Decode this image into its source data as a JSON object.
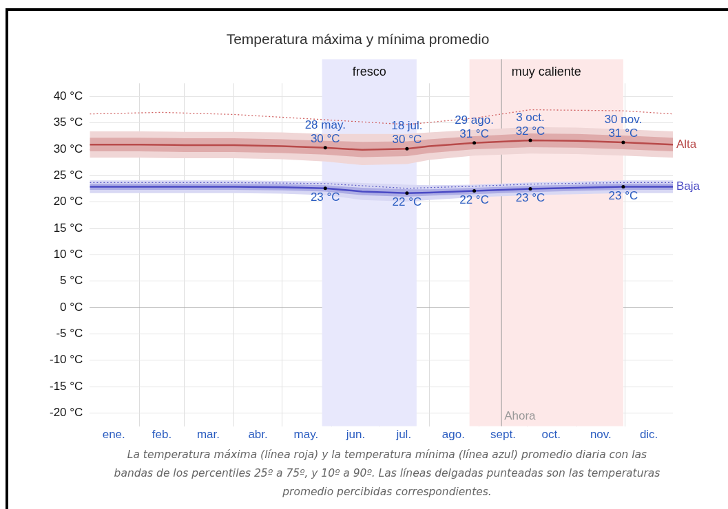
{
  "chart_data": {
    "type": "line",
    "title": "Temperatura máxima y mínima promedio",
    "xlim": [
      "--01-01",
      "--12-31"
    ],
    "xticks": [
      {
        "value": "--01-16",
        "label": "ene."
      },
      {
        "value": "--02-01",
        "label": null
      },
      {
        "value": "--02-15",
        "label": "feb."
      },
      {
        "value": "--03-01",
        "label": null
      },
      {
        "value": "--03-16",
        "label": "mar."
      },
      {
        "value": "--04-01",
        "label": null
      },
      {
        "value": "--04-16",
        "label": "abr."
      },
      {
        "value": "--05-01",
        "label": null
      },
      {
        "value": "--05-16",
        "label": "may."
      },
      {
        "value": "--06-01",
        "label": null
      },
      {
        "value": "--06-16",
        "label": "jun."
      },
      {
        "value": "--07-01",
        "label": null
      },
      {
        "value": "--07-16",
        "label": "jul."
      },
      {
        "value": "--08-01",
        "label": null
      },
      {
        "value": "--08-16",
        "label": "ago."
      },
      {
        "value": "--09-01",
        "label": null
      },
      {
        "value": "--09-16",
        "label": "sept."
      },
      {
        "value": "--10-01",
        "label": null
      },
      {
        "value": "--10-16",
        "label": "oct."
      },
      {
        "value": "--11-01",
        "label": null
      },
      {
        "value": "--11-16",
        "label": "nov."
      },
      {
        "value": "--12-01",
        "label": null
      },
      {
        "value": "--12-16",
        "label": "dic."
      }
    ],
    "ylim": [
      -22.5,
      42.5
    ],
    "yticks": [
      {
        "value": -20,
        "label": "-20 °C"
      },
      {
        "value": -15,
        "label": "-15 °C"
      },
      {
        "value": -10,
        "label": "-10 °C"
      },
      {
        "value": -5,
        "label": "-5 °C"
      },
      {
        "value": 0,
        "label": "0 °C"
      },
      {
        "value": 5,
        "label": "5 °C"
      },
      {
        "value": 10,
        "label": "10 °C"
      },
      {
        "value": 15,
        "label": "15 °C"
      },
      {
        "value": 20,
        "label": "20 °C"
      },
      {
        "value": 25,
        "label": "25 °C"
      },
      {
        "value": 30,
        "label": "30 °C"
      },
      {
        "value": 35,
        "label": "35 °C"
      },
      {
        "value": 40,
        "label": "40 °C"
      }
    ],
    "grid": true,
    "legend": false,
    "series": [
      {
        "color": "#f0d6d6",
        "x": [
          "--01-01",
          "--02-01",
          "--03-01",
          "--04-01",
          "--05-01",
          "--05-28",
          "--06-20",
          "--07-18",
          "--08-01",
          "--08-29",
          "--10-03",
          "--11-01",
          "--11-30",
          "--12-31"
        ],
        "values": [
          null,
          null,
          null,
          null,
          null,
          null,
          null,
          null,
          null,
          null,
          null,
          null,
          null,
          null
        ],
        "lower": [
          28.4,
          28.4,
          28.3,
          28.3,
          28.1,
          27.7,
          27.0,
          27.2,
          28.0,
          28.8,
          29.2,
          29.1,
          28.8,
          28.4
        ],
        "upper": [
          33.4,
          33.4,
          33.3,
          33.3,
          33.2,
          32.9,
          32.9,
          32.9,
          33.2,
          33.7,
          34.2,
          34.1,
          33.8,
          33.4
        ]
      },
      {
        "name": "Alta",
        "color": "#b84a4a",
        "x": [
          "--01-01",
          "--02-01",
          "--03-01",
          "--04-01",
          "--05-01",
          "--05-28",
          "--06-20",
          "--07-18",
          "--08-01",
          "--08-29",
          "--10-03",
          "--11-01",
          "--11-30",
          "--12-31"
        ],
        "values": [
          30.9,
          30.9,
          30.8,
          30.8,
          30.6,
          30.3,
          29.9,
          30.1,
          30.6,
          31.2,
          31.7,
          31.6,
          31.3,
          30.9
        ],
        "lower": [
          29.6,
          29.6,
          29.5,
          29.5,
          29.3,
          29.0,
          28.5,
          28.7,
          29.3,
          30.0,
          30.4,
          30.3,
          30.0,
          29.6
        ],
        "upper": [
          32.2,
          32.2,
          32.1,
          32.1,
          31.9,
          31.6,
          31.4,
          31.5,
          31.9,
          32.5,
          33.0,
          32.9,
          32.6,
          32.2
        ]
      },
      {
        "color": "#d8d8f4",
        "x": [
          "--01-01",
          "--02-01",
          "--03-01",
          "--04-01",
          "--05-01",
          "--05-28",
          "--06-20",
          "--07-18",
          "--08-01",
          "--08-29",
          "--10-03",
          "--11-01",
          "--11-30",
          "--12-31"
        ],
        "values": [
          null,
          null,
          null,
          null,
          null,
          null,
          null,
          null,
          null,
          null,
          null,
          null,
          null,
          null
        ],
        "lower": [
          21.7,
          21.7,
          21.7,
          21.7,
          21.6,
          21.3,
          20.4,
          20.1,
          20.4,
          20.9,
          21.3,
          21.5,
          21.7,
          21.7
        ],
        "upper": [
          24.1,
          24.1,
          24.1,
          24.1,
          24.0,
          23.9,
          23.6,
          23.3,
          23.2,
          23.3,
          23.7,
          23.9,
          24.1,
          24.1
        ]
      },
      {
        "name": "Baja",
        "color": "#4a4ac4",
        "x": [
          "--01-01",
          "--02-01",
          "--03-01",
          "--04-01",
          "--05-01",
          "--05-28",
          "--06-20",
          "--07-18",
          "--08-01",
          "--08-29",
          "--10-03",
          "--11-01",
          "--11-30",
          "--12-31"
        ],
        "values": [
          22.9,
          22.9,
          22.9,
          22.9,
          22.8,
          22.6,
          22.0,
          21.7,
          21.8,
          22.1,
          22.5,
          22.7,
          22.9,
          22.9
        ],
        "lower": [
          22.3,
          22.3,
          22.3,
          22.3,
          22.2,
          22.0,
          21.3,
          21.0,
          21.2,
          21.5,
          21.9,
          22.1,
          22.3,
          22.3
        ],
        "upper": [
          23.5,
          23.5,
          23.5,
          23.5,
          23.4,
          23.2,
          22.7,
          22.4,
          22.4,
          22.7,
          23.1,
          23.3,
          23.5,
          23.5
        ]
      },
      {
        "color": "#d06060",
        "line_style": "dotted",
        "x": [
          "--01-01",
          "--02-15",
          "--04-01",
          "--05-28",
          "--07-18",
          "--08-29",
          "--10-03",
          "--11-30",
          "--12-31"
        ],
        "values": [
          36.7,
          37.0,
          36.6,
          35.6,
          34.7,
          35.9,
          37.5,
          37.3,
          36.7
        ]
      },
      {
        "color": "#6060c8",
        "line_style": "dotted",
        "x": [
          "--01-01",
          "--02-15",
          "--04-01",
          "--05-28",
          "--07-18",
          "--08-29",
          "--10-03",
          "--11-30",
          "--12-31"
        ],
        "values": [
          23.7,
          23.7,
          23.7,
          23.5,
          22.6,
          23.0,
          23.4,
          23.7,
          23.7
        ]
      }
    ],
    "bands": [
      {
        "axis": "x",
        "from": "--05-26",
        "to": "--07-24",
        "label": "fresco",
        "color": "#e8e8fc"
      },
      {
        "axis": "x",
        "from": "--08-26",
        "to": "--11-30",
        "label": "muy caliente",
        "color": "#fde8e8"
      }
    ],
    "ref_lines": [
      {
        "axis": "x",
        "value": "--09-15",
        "label": "Ahora",
        "color": "#999999"
      }
    ],
    "annotations": [
      {
        "text": "28 may.\n30 °C",
        "x": "--05-28",
        "y": 30.3
      },
      {
        "text": "18 jul.\n30 °C",
        "x": "--07-18",
        "y": 30.1
      },
      {
        "text": "29 ago.\n31 °C",
        "x": "--08-29",
        "y": 31.2
      },
      {
        "text": "3 oct.\n32 °C",
        "x": "--10-03",
        "y": 31.7
      },
      {
        "text": "30 nov.\n31 °C",
        "x": "--11-30",
        "y": 31.3
      },
      {
        "text": "23 °C",
        "x": "--05-28",
        "y": 22.6
      },
      {
        "text": "22 °C",
        "x": "--07-18",
        "y": 21.7
      },
      {
        "text": "22 °C",
        "x": "--08-29",
        "y": 22.1
      },
      {
        "text": "23 °C",
        "x": "--10-03",
        "y": 22.5
      },
      {
        "text": "23 °C",
        "x": "--11-30",
        "y": 22.9
      },
      "La temperatura máxima (línea roja) y la temperatura mínima (línea azul) promedio diaria con las bandas de los percentiles 25º a 75º, y 10º a 90º. Las líneas delgadas punteadas son las temperaturas promedio percibidas correspondientes."
    ]
  }
}
